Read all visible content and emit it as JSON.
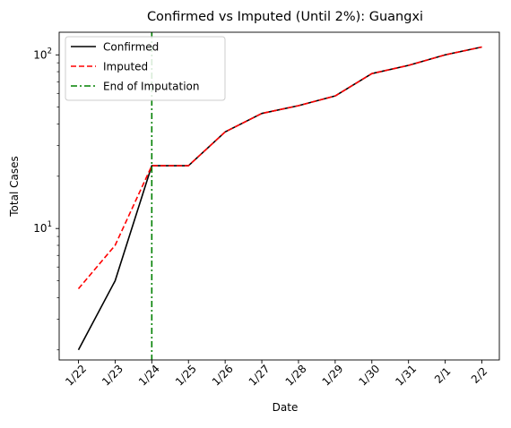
{
  "colors": {
    "confirmed": "#000000",
    "imputed": "#ff0000",
    "end_of_imputation": "#008000",
    "axes": "#000000",
    "legend_frame": "#cccccc"
  },
  "chart_data": {
    "type": "line",
    "title": "Confirmed vs Imputed (Until 2%): Guangxi",
    "xlabel": "Date",
    "ylabel": "Total Cases",
    "yscale": "log",
    "ylim": [
      1.75,
      135
    ],
    "grid": false,
    "legend_position": "upper-left",
    "categories": [
      "1/22",
      "1/23",
      "1/24",
      "1/25",
      "1/26",
      "1/27",
      "1/28",
      "1/29",
      "1/30",
      "1/31",
      "2/1",
      "2/2"
    ],
    "yticks": [
      {
        "value": 10,
        "label_base": "10",
        "label_exp": "1"
      },
      {
        "value": 100,
        "label_base": "10",
        "label_exp": "2"
      }
    ],
    "series": [
      {
        "name": "Confirmed",
        "style": "solid",
        "color_key": "confirmed",
        "values": [
          2,
          5,
          23,
          23,
          36,
          46,
          51,
          58,
          78,
          87,
          100,
          111
        ]
      },
      {
        "name": "Imputed",
        "style": "dashed",
        "color_key": "imputed",
        "values": [
          4.5,
          8,
          23,
          23,
          36,
          46,
          51,
          58,
          78,
          87,
          100,
          111
        ]
      }
    ],
    "vline": {
      "name": "End of Imputation",
      "style": "dashdot",
      "color_key": "end_of_imputation",
      "x": "1/24"
    }
  }
}
